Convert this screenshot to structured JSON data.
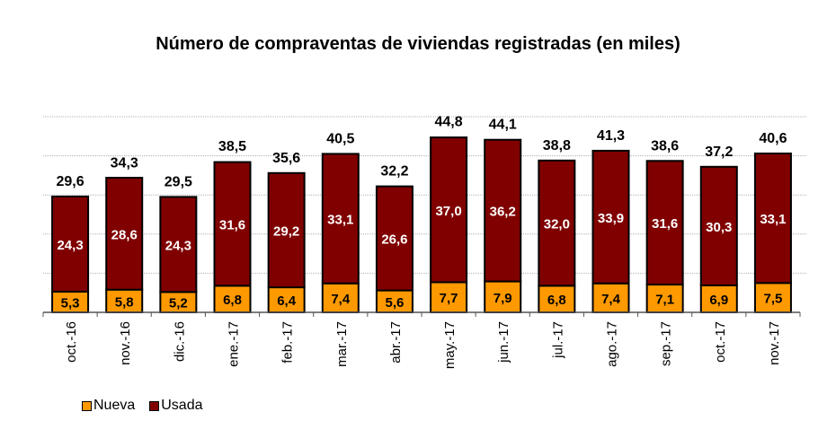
{
  "chart_data": {
    "type": "bar",
    "stacked": true,
    "title": "Número de compraventas de viviendas registradas (en miles)",
    "xlabel": "",
    "ylabel": "",
    "ylim": [
      0,
      50
    ],
    "grid": true,
    "legend_position": "bottom-left",
    "categories": [
      "oct.-16",
      "nov.-16",
      "dic.-16",
      "ene.-17",
      "feb.-17",
      "mar.-17",
      "abr.-17",
      "may.-17",
      "jun.-17",
      "jul.-17",
      "ago.-17",
      "sep.-17",
      "oct.-17",
      "nov.-17"
    ],
    "series": [
      {
        "name": "Nueva",
        "color": "#FF9900",
        "values": [
          5.3,
          5.8,
          5.2,
          6.8,
          6.4,
          7.4,
          5.6,
          7.7,
          7.9,
          6.8,
          7.4,
          7.1,
          6.9,
          7.5
        ],
        "labels": [
          "5,3",
          "5,8",
          "5,2",
          "6,8",
          "6,4",
          "7,4",
          "5,6",
          "7,7",
          "7,9",
          "6,8",
          "7,4",
          "7,1",
          "6,9",
          "7,5"
        ]
      },
      {
        "name": "Usada",
        "color": "#800000",
        "values": [
          24.3,
          28.6,
          24.3,
          31.6,
          29.2,
          33.1,
          26.6,
          37.0,
          36.2,
          32.0,
          33.9,
          31.6,
          30.3,
          33.1
        ],
        "labels": [
          "24,3",
          "28,6",
          "24,3",
          "31,6",
          "29,2",
          "33,1",
          "26,6",
          "37,0",
          "36,2",
          "32,0",
          "33,9",
          "31,6",
          "30,3",
          "33,1"
        ]
      }
    ],
    "totals": [
      29.6,
      34.3,
      29.5,
      38.5,
      35.6,
      40.5,
      32.2,
      44.8,
      44.1,
      38.8,
      41.3,
      38.6,
      37.2,
      40.6
    ],
    "total_labels": [
      "29,6",
      "34,3",
      "29,5",
      "38,5",
      "35,6",
      "40,5",
      "32,2",
      "44,8",
      "44,1",
      "38,8",
      "41,3",
      "38,6",
      "37,2",
      "40,6"
    ]
  }
}
